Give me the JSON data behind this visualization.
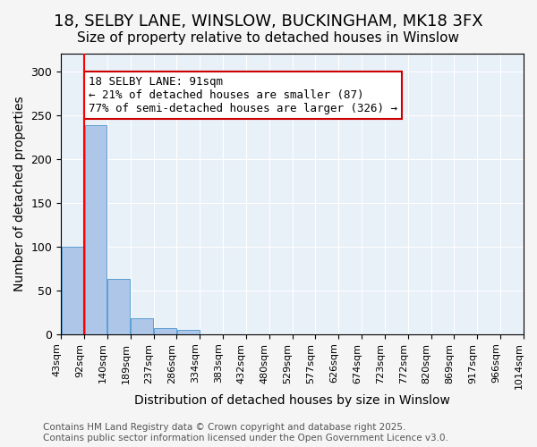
{
  "title": "18, SELBY LANE, WINSLOW, BUCKINGHAM, MK18 3FX",
  "subtitle": "Size of property relative to detached houses in Winslow",
  "xlabel": "Distribution of detached houses by size in Winslow",
  "ylabel": "Number of detached properties",
  "bin_labels": [
    "43sqm",
    "92sqm",
    "140sqm",
    "189sqm",
    "237sqm",
    "286sqm",
    "334sqm",
    "383sqm",
    "432sqm",
    "480sqm",
    "529sqm",
    "577sqm",
    "626sqm",
    "674sqm",
    "723sqm",
    "772sqm",
    "820sqm",
    "869sqm",
    "917sqm",
    "966sqm",
    "1014sqm"
  ],
  "bar_values": [
    100,
    238,
    63,
    18,
    7,
    5,
    0,
    0,
    0,
    0,
    0,
    0,
    0,
    0,
    0,
    0,
    0,
    0,
    0,
    0
  ],
  "bar_color": "#aec6e8",
  "bar_edge_color": "#5a9fd4",
  "red_line_x": 1,
  "annotation_text": "18 SELBY LANE: 91sqm\n← 21% of detached houses are smaller (87)\n77% of semi-detached houses are larger (326) →",
  "annotation_box_color": "#ffffff",
  "annotation_box_edge_color": "#cc0000",
  "ylim": [
    0,
    320
  ],
  "yticks": [
    0,
    50,
    100,
    150,
    200,
    250,
    300
  ],
  "background_color": "#e8f0f8",
  "footer_text": "Contains HM Land Registry data © Crown copyright and database right 2025.\nContains public sector information licensed under the Open Government Licence v3.0.",
  "title_fontsize": 13,
  "subtitle_fontsize": 11,
  "axis_label_fontsize": 10,
  "tick_fontsize": 8,
  "annotation_fontsize": 9,
  "footer_fontsize": 7.5
}
